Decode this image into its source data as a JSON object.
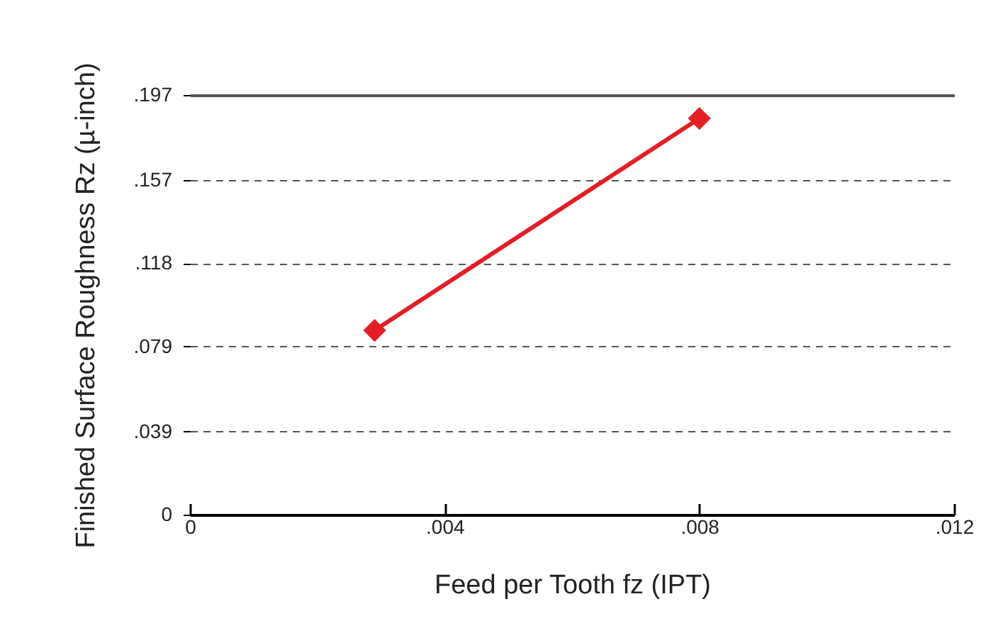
{
  "chart_data": {
    "type": "line",
    "xlabel": "Feed per Tooth fz (IPT)",
    "ylabel": "Finished Surface Roughness Rz (µ-inch)",
    "x": [
      0.0029,
      0.008
    ],
    "series": [
      {
        "color": "#e31e24",
        "values": [
          0.0865,
          0.186
        ]
      }
    ],
    "xlim": [
      0,
      0.012
    ],
    "xticks": [
      0,
      {
        "value": 0.004,
        "label": ".004"
      },
      {
        "value": 0.008,
        "label": ".008"
      },
      {
        "value": 0.012,
        "label": ".012"
      }
    ],
    "ylim": [
      0,
      0.197
    ],
    "yticks": [
      0,
      {
        "value": 0.039,
        "label": ".039"
      },
      {
        "value": 0.079,
        "label": ".079"
      },
      {
        "value": 0.118,
        "label": ".118"
      },
      {
        "value": 0.157,
        "label": ".157"
      },
      {
        "value": 0.197,
        "label": ".197"
      }
    ],
    "grid": "y",
    "marker": "diamond",
    "line_style": "solid"
  }
}
